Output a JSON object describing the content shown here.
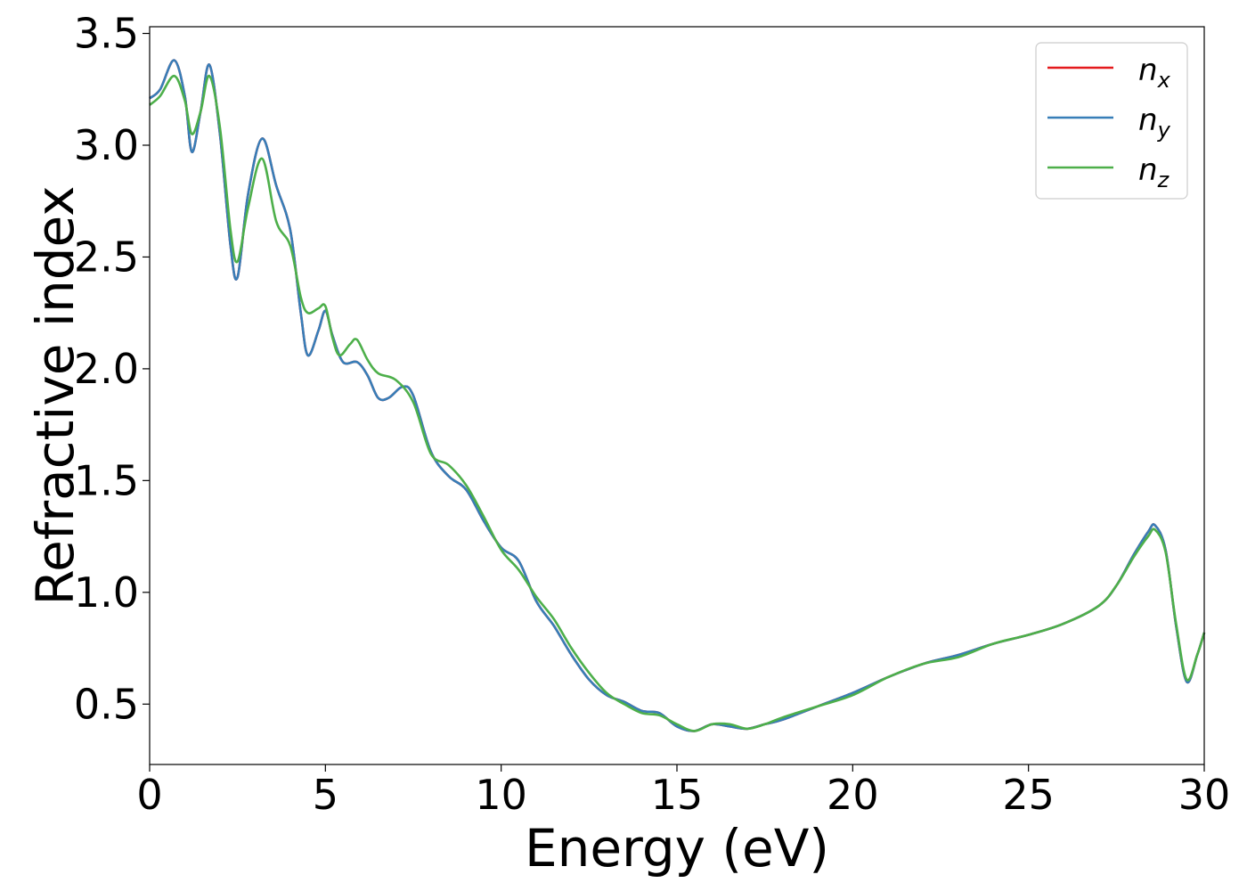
{
  "chart_data": {
    "type": "line",
    "xlabel": "Energy (eV)",
    "ylabel": "Refractive index",
    "xlim": [
      0,
      30
    ],
    "ylim": [
      0.23,
      3.53
    ],
    "xticks": [
      0,
      5,
      10,
      15,
      20,
      25,
      30
    ],
    "xtick_labels": [
      "0",
      "5",
      "10",
      "15",
      "20",
      "25",
      "30"
    ],
    "yticks": [
      0.5,
      1.0,
      1.5,
      2.0,
      2.5,
      3.0,
      3.5
    ],
    "ytick_labels": [
      "0.5",
      "1.0",
      "1.5",
      "2.0",
      "2.5",
      "3.0",
      "3.5"
    ],
    "grid": false,
    "legend_position": "top-right",
    "series": [
      {
        "name": "n_x",
        "legend_base": "n",
        "legend_sub": "x",
        "color": "#e41a1c",
        "points": [
          [
            0,
            3.21
          ],
          [
            0.3,
            3.25
          ],
          [
            0.7,
            3.38
          ],
          [
            1.0,
            3.22
          ],
          [
            1.2,
            2.97
          ],
          [
            1.45,
            3.15
          ],
          [
            1.7,
            3.36
          ],
          [
            2.0,
            3.05
          ],
          [
            2.3,
            2.55
          ],
          [
            2.5,
            2.41
          ],
          [
            2.8,
            2.78
          ],
          [
            3.2,
            3.03
          ],
          [
            3.6,
            2.82
          ],
          [
            4.0,
            2.62
          ],
          [
            4.3,
            2.25
          ],
          [
            4.5,
            2.06
          ],
          [
            4.8,
            2.17
          ],
          [
            5.0,
            2.26
          ],
          [
            5.2,
            2.15
          ],
          [
            5.5,
            2.03
          ],
          [
            5.9,
            2.03
          ],
          [
            6.2,
            1.97
          ],
          [
            6.5,
            1.87
          ],
          [
            6.8,
            1.87
          ],
          [
            7.2,
            1.92
          ],
          [
            7.5,
            1.88
          ],
          [
            8.0,
            1.63
          ],
          [
            8.5,
            1.52
          ],
          [
            9.0,
            1.46
          ],
          [
            9.5,
            1.32
          ],
          [
            10.0,
            1.2
          ],
          [
            10.5,
            1.14
          ],
          [
            11.0,
            0.96
          ],
          [
            11.5,
            0.85
          ],
          [
            12.0,
            0.72
          ],
          [
            12.5,
            0.61
          ],
          [
            13.0,
            0.54
          ],
          [
            13.5,
            0.51
          ],
          [
            14.0,
            0.47
          ],
          [
            14.5,
            0.46
          ],
          [
            15.0,
            0.4
          ],
          [
            15.5,
            0.38
          ],
          [
            16.0,
            0.41
          ],
          [
            16.5,
            0.4
          ],
          [
            17.0,
            0.39
          ],
          [
            17.5,
            0.41
          ],
          [
            18.0,
            0.43
          ],
          [
            19.0,
            0.49
          ],
          [
            20.0,
            0.55
          ],
          [
            21.0,
            0.62
          ],
          [
            22.0,
            0.68
          ],
          [
            23.0,
            0.72
          ],
          [
            24.0,
            0.77
          ],
          [
            25.0,
            0.81
          ],
          [
            26.0,
            0.86
          ],
          [
            27.0,
            0.94
          ],
          [
            27.5,
            1.03
          ],
          [
            28.0,
            1.17
          ],
          [
            28.4,
            1.27
          ],
          [
            28.6,
            1.3
          ],
          [
            28.9,
            1.19
          ],
          [
            29.2,
            0.85
          ],
          [
            29.5,
            0.6
          ],
          [
            29.8,
            0.72
          ],
          [
            30.0,
            0.82
          ]
        ]
      },
      {
        "name": "n_y",
        "legend_base": "n",
        "legend_sub": "y",
        "color": "#377eb8",
        "points": [
          [
            0,
            3.21
          ],
          [
            0.3,
            3.25
          ],
          [
            0.7,
            3.38
          ],
          [
            1.0,
            3.22
          ],
          [
            1.2,
            2.97
          ],
          [
            1.45,
            3.15
          ],
          [
            1.7,
            3.36
          ],
          [
            2.0,
            3.05
          ],
          [
            2.3,
            2.55
          ],
          [
            2.5,
            2.41
          ],
          [
            2.8,
            2.78
          ],
          [
            3.2,
            3.03
          ],
          [
            3.6,
            2.82
          ],
          [
            4.0,
            2.62
          ],
          [
            4.3,
            2.25
          ],
          [
            4.5,
            2.06
          ],
          [
            4.8,
            2.17
          ],
          [
            5.0,
            2.26
          ],
          [
            5.2,
            2.15
          ],
          [
            5.5,
            2.03
          ],
          [
            5.9,
            2.03
          ],
          [
            6.2,
            1.97
          ],
          [
            6.5,
            1.87
          ],
          [
            6.8,
            1.87
          ],
          [
            7.2,
            1.92
          ],
          [
            7.5,
            1.88
          ],
          [
            8.0,
            1.63
          ],
          [
            8.5,
            1.52
          ],
          [
            9.0,
            1.46
          ],
          [
            9.5,
            1.32
          ],
          [
            10.0,
            1.2
          ],
          [
            10.5,
            1.14
          ],
          [
            11.0,
            0.96
          ],
          [
            11.5,
            0.85
          ],
          [
            12.0,
            0.72
          ],
          [
            12.5,
            0.61
          ],
          [
            13.0,
            0.54
          ],
          [
            13.5,
            0.51
          ],
          [
            14.0,
            0.47
          ],
          [
            14.5,
            0.46
          ],
          [
            15.0,
            0.4
          ],
          [
            15.5,
            0.38
          ],
          [
            16.0,
            0.41
          ],
          [
            16.5,
            0.4
          ],
          [
            17.0,
            0.39
          ],
          [
            17.5,
            0.41
          ],
          [
            18.0,
            0.43
          ],
          [
            19.0,
            0.49
          ],
          [
            20.0,
            0.55
          ],
          [
            21.0,
            0.62
          ],
          [
            22.0,
            0.68
          ],
          [
            23.0,
            0.72
          ],
          [
            24.0,
            0.77
          ],
          [
            25.0,
            0.81
          ],
          [
            26.0,
            0.86
          ],
          [
            27.0,
            0.94
          ],
          [
            27.5,
            1.03
          ],
          [
            28.0,
            1.17
          ],
          [
            28.4,
            1.27
          ],
          [
            28.6,
            1.3
          ],
          [
            28.9,
            1.19
          ],
          [
            29.2,
            0.85
          ],
          [
            29.5,
            0.6
          ],
          [
            29.8,
            0.72
          ],
          [
            30.0,
            0.82
          ]
        ]
      },
      {
        "name": "n_z",
        "legend_base": "n",
        "legend_sub": "z",
        "color": "#4daf4a",
        "points": [
          [
            0,
            3.18
          ],
          [
            0.3,
            3.22
          ],
          [
            0.7,
            3.31
          ],
          [
            1.0,
            3.2
          ],
          [
            1.2,
            3.05
          ],
          [
            1.45,
            3.15
          ],
          [
            1.7,
            3.31
          ],
          [
            2.0,
            3.08
          ],
          [
            2.3,
            2.62
          ],
          [
            2.5,
            2.48
          ],
          [
            2.8,
            2.72
          ],
          [
            3.2,
            2.94
          ],
          [
            3.6,
            2.66
          ],
          [
            4.0,
            2.55
          ],
          [
            4.3,
            2.32
          ],
          [
            4.5,
            2.25
          ],
          [
            4.8,
            2.27
          ],
          [
            5.0,
            2.28
          ],
          [
            5.2,
            2.14
          ],
          [
            5.4,
            2.06
          ],
          [
            5.7,
            2.11
          ],
          [
            5.9,
            2.13
          ],
          [
            6.2,
            2.04
          ],
          [
            6.5,
            1.98
          ],
          [
            7.0,
            1.95
          ],
          [
            7.5,
            1.85
          ],
          [
            8.0,
            1.62
          ],
          [
            8.5,
            1.57
          ],
          [
            9.0,
            1.48
          ],
          [
            9.5,
            1.34
          ],
          [
            10.0,
            1.19
          ],
          [
            10.5,
            1.1
          ],
          [
            11.0,
            0.98
          ],
          [
            11.5,
            0.88
          ],
          [
            12.0,
            0.75
          ],
          [
            12.5,
            0.64
          ],
          [
            13.0,
            0.55
          ],
          [
            13.5,
            0.5
          ],
          [
            14.0,
            0.46
          ],
          [
            14.5,
            0.45
          ],
          [
            15.0,
            0.41
          ],
          [
            15.5,
            0.38
          ],
          [
            16.0,
            0.41
          ],
          [
            16.5,
            0.41
          ],
          [
            17.0,
            0.39
          ],
          [
            17.5,
            0.41
          ],
          [
            18.0,
            0.44
          ],
          [
            19.0,
            0.49
          ],
          [
            20.0,
            0.54
          ],
          [
            21.0,
            0.62
          ],
          [
            22.0,
            0.68
          ],
          [
            23.0,
            0.71
          ],
          [
            24.0,
            0.77
          ],
          [
            25.0,
            0.81
          ],
          [
            26.0,
            0.86
          ],
          [
            27.0,
            0.94
          ],
          [
            27.5,
            1.03
          ],
          [
            28.0,
            1.16
          ],
          [
            28.4,
            1.25
          ],
          [
            28.6,
            1.28
          ],
          [
            28.9,
            1.18
          ],
          [
            29.2,
            0.86
          ],
          [
            29.5,
            0.61
          ],
          [
            29.8,
            0.72
          ],
          [
            30.0,
            0.82
          ]
        ]
      }
    ]
  }
}
